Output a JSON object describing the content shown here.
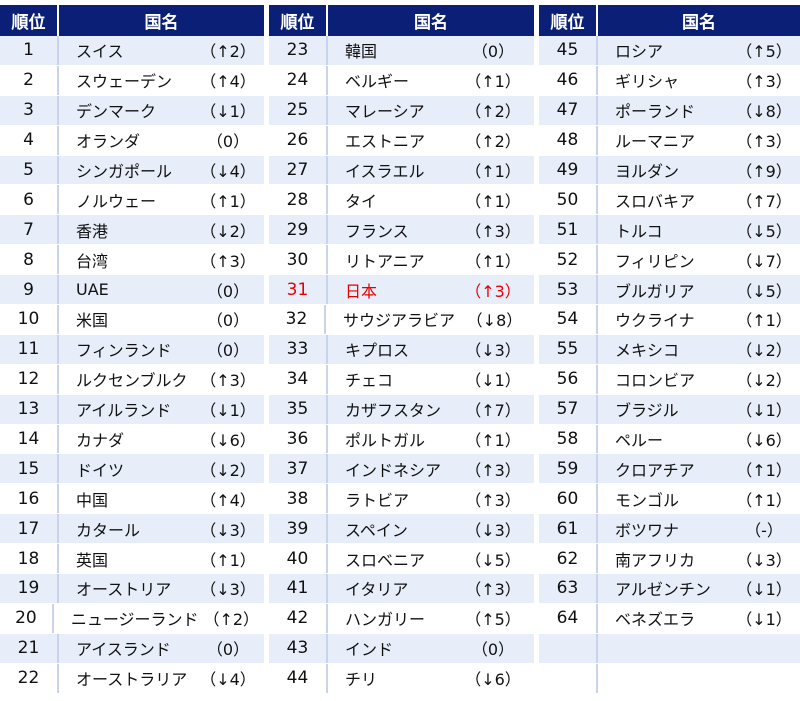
{
  "header": {
    "rank_label": "順位",
    "name_label": "国名"
  },
  "columns": [
    {
      "rows": [
        {
          "rank": "1",
          "name": "スイス",
          "change": "（↑2）"
        },
        {
          "rank": "2",
          "name": "スウェーデン",
          "change": "（↑4）"
        },
        {
          "rank": "3",
          "name": "デンマーク",
          "change": "（↓1）"
        },
        {
          "rank": "4",
          "name": "オランダ",
          "change": "（0）"
        },
        {
          "rank": "5",
          "name": "シンガポール",
          "change": "（↓4）"
        },
        {
          "rank": "6",
          "name": "ノルウェー",
          "change": "（↑1）"
        },
        {
          "rank": "7",
          "name": "香港",
          "change": "（↓2）"
        },
        {
          "rank": "8",
          "name": "台湾",
          "change": "（↑3）"
        },
        {
          "rank": "9",
          "name": "UAE",
          "change": "（0）"
        },
        {
          "rank": "10",
          "name": "米国",
          "change": "（0）"
        },
        {
          "rank": "11",
          "name": "フィンランド",
          "change": "（0）"
        },
        {
          "rank": "12",
          "name": "ルクセンブルク",
          "change": "（↑3）"
        },
        {
          "rank": "13",
          "name": "アイルランド",
          "change": "（↓1）"
        },
        {
          "rank": "14",
          "name": "カナダ",
          "change": "（↓6）"
        },
        {
          "rank": "15",
          "name": "ドイツ",
          "change": "（↓2）"
        },
        {
          "rank": "16",
          "name": "中国",
          "change": "（↑4）"
        },
        {
          "rank": "17",
          "name": "カタール",
          "change": "（↓3）"
        },
        {
          "rank": "18",
          "name": "英国",
          "change": "（↑1）"
        },
        {
          "rank": "19",
          "name": "オーストリア",
          "change": "（↓3）"
        },
        {
          "rank": "20",
          "name": "ニュージーランド",
          "change": "（↑2）"
        },
        {
          "rank": "21",
          "name": "アイスランド",
          "change": "（0）"
        },
        {
          "rank": "22",
          "name": "オーストラリア",
          "change": "（↓4）"
        }
      ]
    },
    {
      "rows": [
        {
          "rank": "23",
          "name": "韓国",
          "change": "（0）"
        },
        {
          "rank": "24",
          "name": "ベルギー",
          "change": "（↑1）"
        },
        {
          "rank": "25",
          "name": "マレーシア",
          "change": "（↑2）"
        },
        {
          "rank": "26",
          "name": "エストニア",
          "change": "（↑2）"
        },
        {
          "rank": "27",
          "name": "イスラエル",
          "change": "（↑1）"
        },
        {
          "rank": "28",
          "name": "タイ",
          "change": "（↑1）"
        },
        {
          "rank": "29",
          "name": "フランス",
          "change": "（↑3）"
        },
        {
          "rank": "30",
          "name": "リトアニア",
          "change": "（↑1）"
        },
        {
          "rank": "31",
          "name": "日本",
          "change": "（↑3）",
          "highlight": true
        },
        {
          "rank": "32",
          "name": "サウジアラビア",
          "change": "（↓8）"
        },
        {
          "rank": "33",
          "name": "キプロス",
          "change": "（↓3）"
        },
        {
          "rank": "34",
          "name": "チェコ",
          "change": "（↓1）"
        },
        {
          "rank": "35",
          "name": "カザフスタン",
          "change": "（↑7）"
        },
        {
          "rank": "36",
          "name": "ポルトガル",
          "change": "（↑1）"
        },
        {
          "rank": "37",
          "name": "インドネシア",
          "change": "（↑3）"
        },
        {
          "rank": "38",
          "name": "ラトビア",
          "change": "（↑3）"
        },
        {
          "rank": "39",
          "name": "スペイン",
          "change": "（↓3）"
        },
        {
          "rank": "40",
          "name": "スロベニア",
          "change": "（↓5）"
        },
        {
          "rank": "41",
          "name": "イタリア",
          "change": "（↑3）"
        },
        {
          "rank": "42",
          "name": "ハンガリー",
          "change": "（↑5）"
        },
        {
          "rank": "43",
          "name": "インド",
          "change": "（0）"
        },
        {
          "rank": "44",
          "name": "チリ",
          "change": "（↓6）"
        }
      ]
    },
    {
      "rows": [
        {
          "rank": "45",
          "name": "ロシア",
          "change": "（↑5）"
        },
        {
          "rank": "46",
          "name": "ギリシャ",
          "change": "（↑3）"
        },
        {
          "rank": "47",
          "name": "ポーランド",
          "change": "（↓8）"
        },
        {
          "rank": "48",
          "name": "ルーマニア",
          "change": "（↑3）"
        },
        {
          "rank": "49",
          "name": "ヨルダン",
          "change": "（↑9）"
        },
        {
          "rank": "50",
          "name": "スロバキア",
          "change": "（↑7）"
        },
        {
          "rank": "51",
          "name": "トルコ",
          "change": "（↓5）"
        },
        {
          "rank": "52",
          "name": "フィリピン",
          "change": "（↓7）"
        },
        {
          "rank": "53",
          "name": "ブルガリア",
          "change": "（↓5）"
        },
        {
          "rank": "54",
          "name": "ウクライナ",
          "change": "（↑1）"
        },
        {
          "rank": "55",
          "name": "メキシコ",
          "change": "（↓2）"
        },
        {
          "rank": "56",
          "name": "コロンビア",
          "change": "（↓2）"
        },
        {
          "rank": "57",
          "name": "ブラジル",
          "change": "（↓1）"
        },
        {
          "rank": "58",
          "name": "ペルー",
          "change": "（↓6）"
        },
        {
          "rank": "59",
          "name": "クロアチア",
          "change": "（↑1）"
        },
        {
          "rank": "60",
          "name": "モンゴル",
          "change": "（↑1）"
        },
        {
          "rank": "61",
          "name": "ボツワナ",
          "change": "（-）"
        },
        {
          "rank": "62",
          "name": "南アフリカ",
          "change": "（↓3）"
        },
        {
          "rank": "63",
          "name": "アルゼンチン",
          "change": "（↓1）"
        },
        {
          "rank": "64",
          "name": "ベネズエラ",
          "change": "（↓1）"
        }
      ]
    }
  ],
  "colors": {
    "header_bg": "#0a1f75",
    "stripe": "#e8eef9",
    "highlight": "#e60000"
  }
}
